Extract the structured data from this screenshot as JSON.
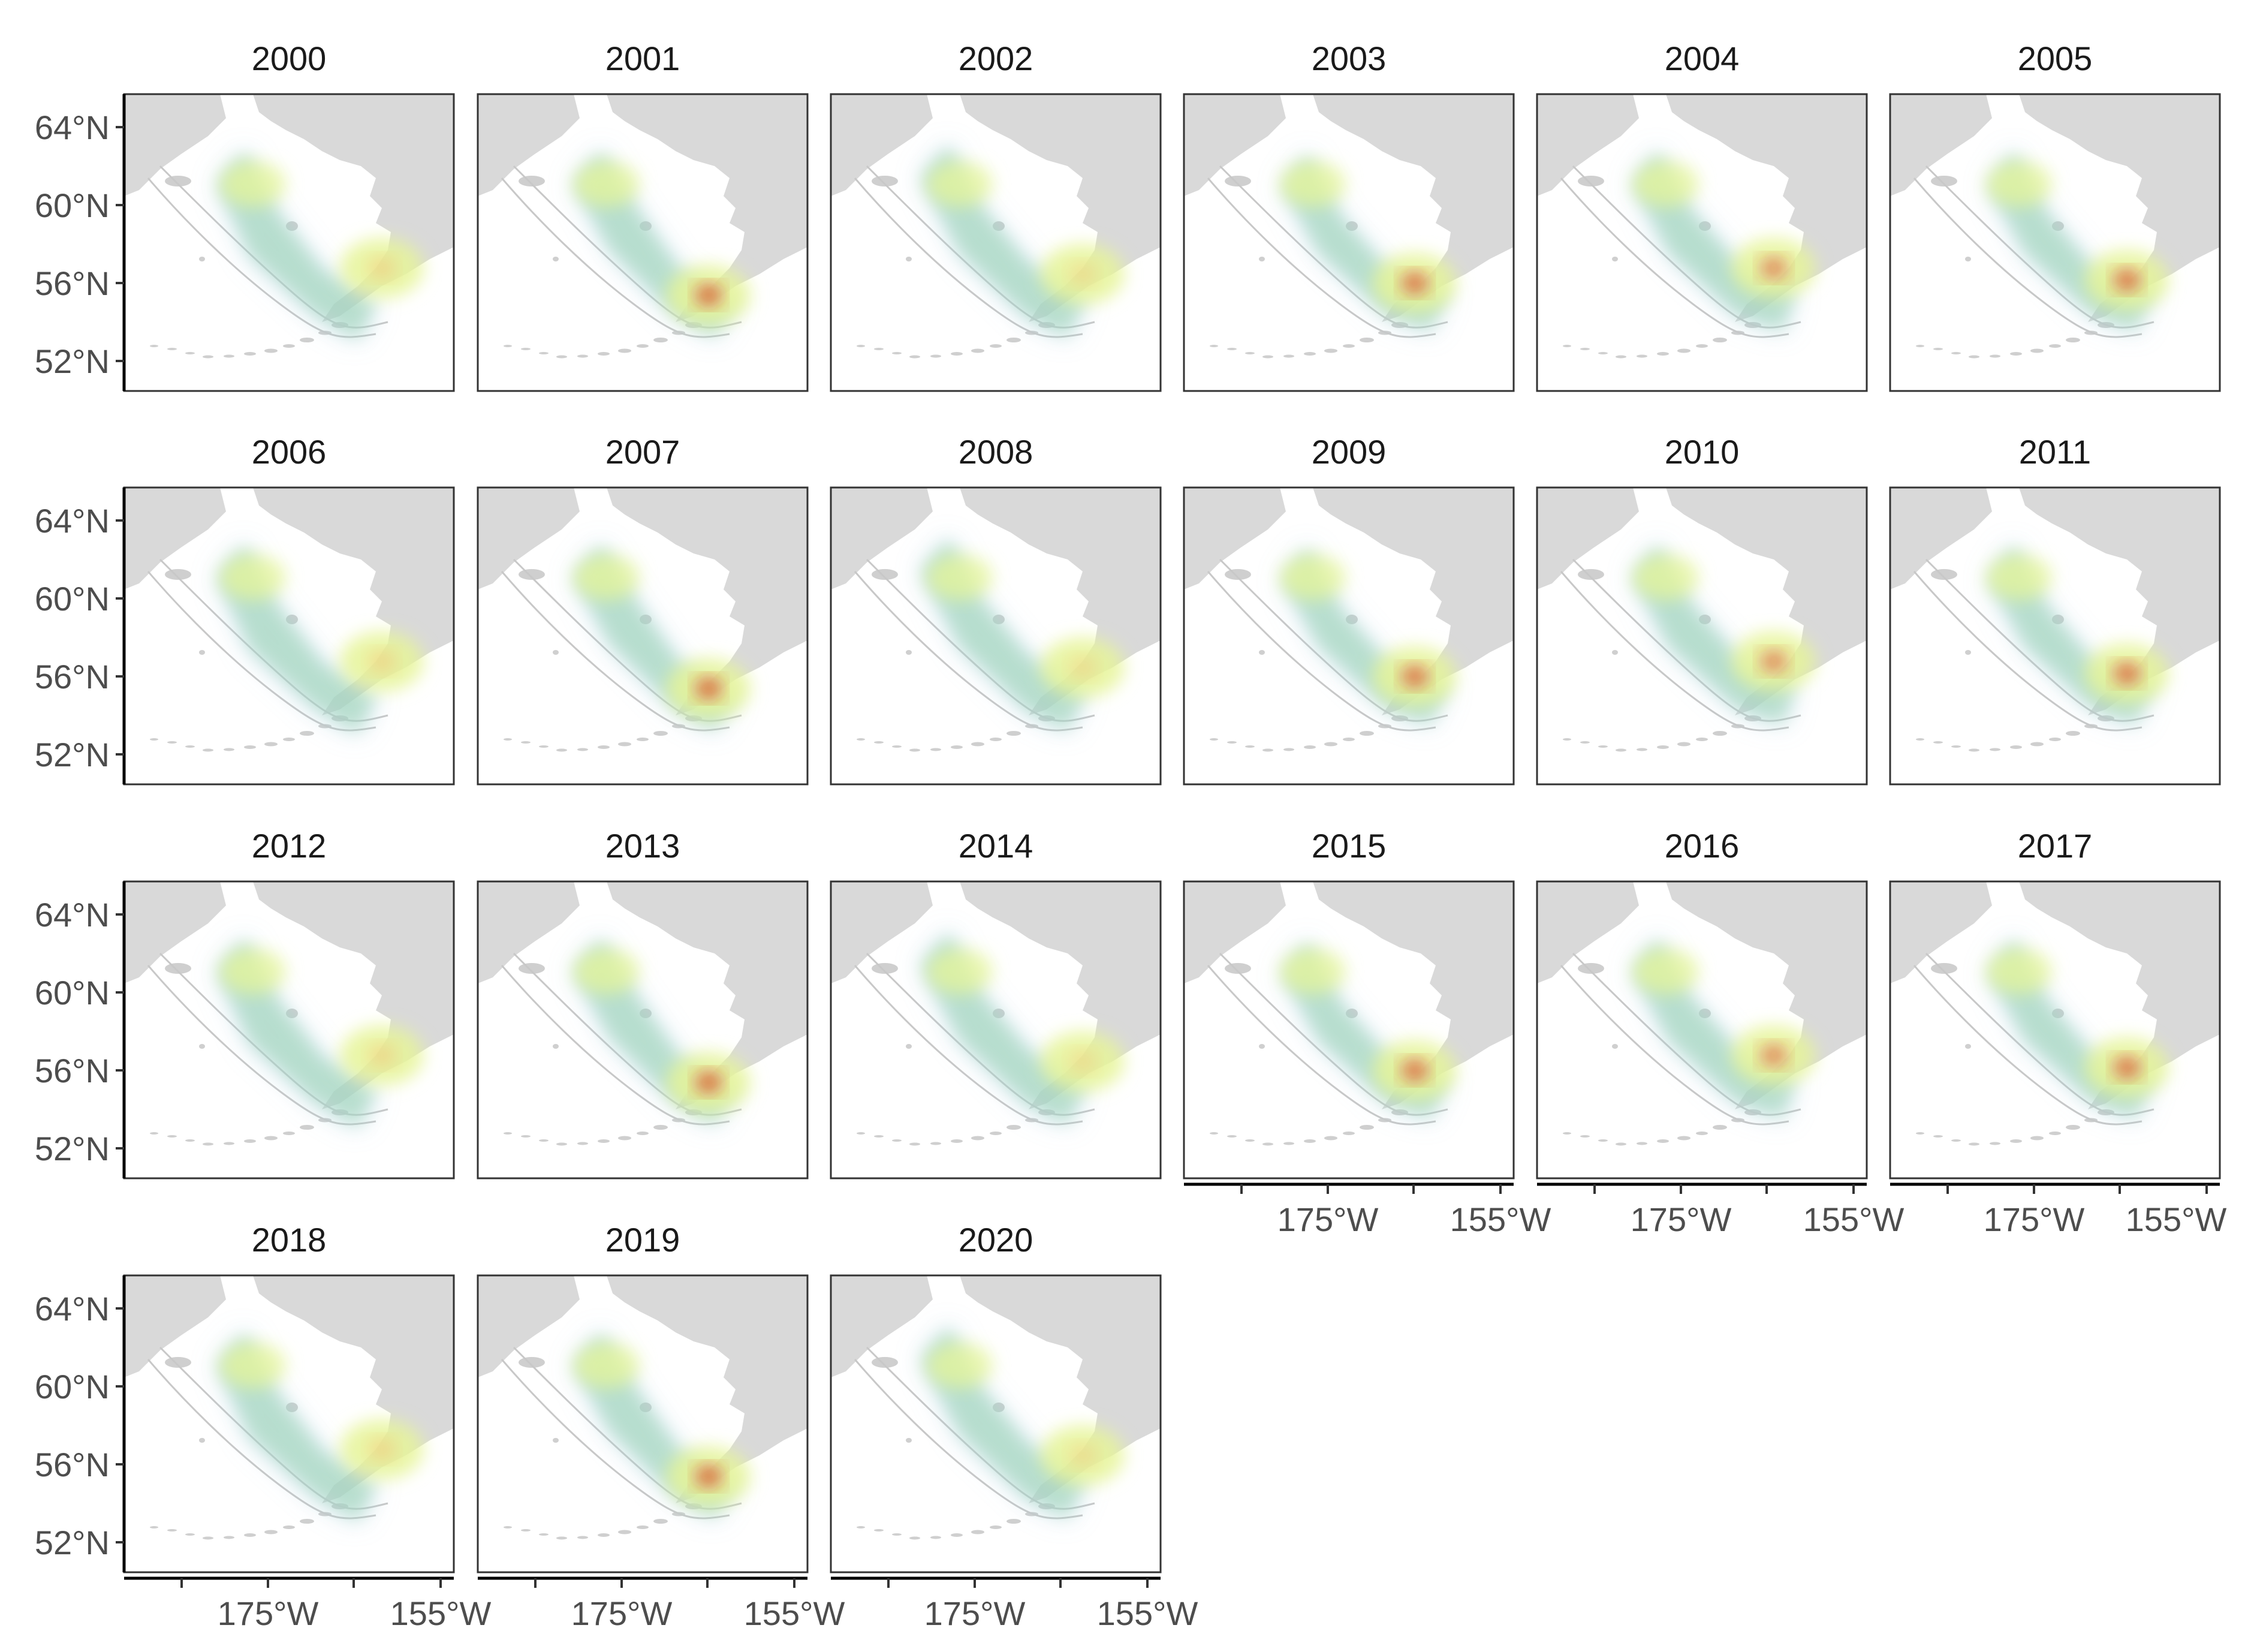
{
  "figure": {
    "panel_titles": [
      "2000",
      "2001",
      "2002",
      "2003",
      "2004",
      "2005",
      "2006",
      "2007",
      "2008",
      "2009",
      "2010",
      "2011",
      "2012",
      "2013",
      "2014",
      "2015",
      "2016",
      "2017",
      "2018",
      "2019",
      "2020"
    ],
    "lat_tick_labels": [
      "64°N",
      "60°N",
      "56°N",
      "52°N"
    ],
    "lon_tick_labels": [
      "175°W",
      "155°W"
    ]
  },
  "colors": {
    "land": "#d9d9d9",
    "density_outer": "#9ecae1",
    "density_mid": "#a6d8b8",
    "density_high": "#e6f598",
    "density_peak": "#fdae61",
    "density_max": "#d7301f"
  }
}
